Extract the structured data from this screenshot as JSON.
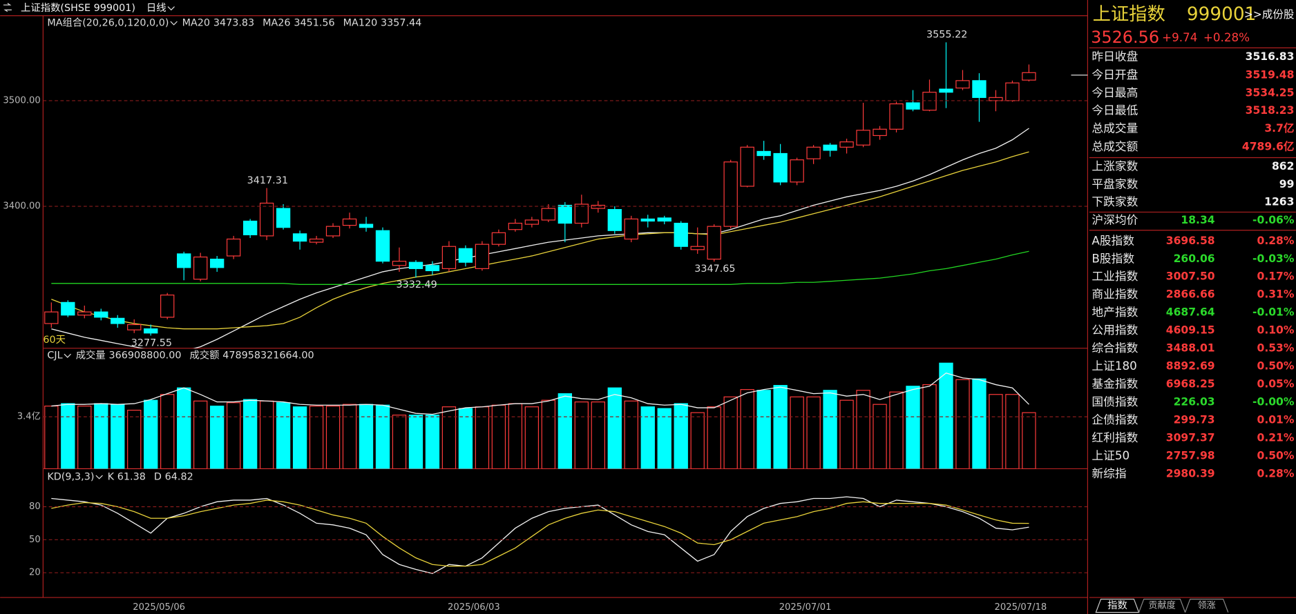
{
  "header": {
    "title": "上证指数(SHSE 999001)",
    "period": "日线"
  },
  "chart_data": [
    {
      "type": "candlestick",
      "title": "MA组合(20,26,0,120,0,0)",
      "period_label": "60天",
      "categories": [
        null,
        null,
        null,
        null,
        null,
        null,
        "2025/05/06",
        null,
        null,
        null,
        null,
        null,
        null,
        null,
        null,
        null,
        null,
        null,
        null,
        null,
        null,
        null,
        null,
        null,
        null,
        "2025/06/03",
        null,
        null,
        null,
        null,
        null,
        null,
        null,
        null,
        null,
        null,
        null,
        null,
        null,
        null,
        null,
        null,
        null,
        null,
        null,
        "2025/07/01",
        null,
        null,
        null,
        null,
        null,
        null,
        null,
        null,
        null,
        null,
        null,
        null,
        "2025/07/18",
        null
      ],
      "open": [
        3289,
        3309,
        3297,
        3300,
        3294,
        3283,
        3284,
        3295,
        3355,
        3331,
        3350,
        3353,
        3386,
        3372,
        3398,
        3374,
        3366,
        3372,
        3382,
        3383,
        3377,
        3344,
        3347,
        3344,
        3341,
        3360,
        3341,
        3364,
        3378,
        3383,
        3387,
        3401,
        3384,
        3398,
        3397,
        3369,
        3388,
        3389,
        3384,
        3359,
        3350,
        3381,
        3419,
        3452,
        3450,
        3423,
        3445,
        3458,
        3456,
        3458,
        3467,
        3473,
        3498,
        3491,
        3511,
        3512,
        3519,
        3500,
        3500,
        3519.48
      ],
      "high": [
        3309,
        3311,
        3306,
        3303,
        3297,
        3293,
        3288,
        3318,
        3357,
        3356,
        3353,
        3372,
        3388,
        3417.31,
        3402,
        3377,
        3372,
        3384,
        3394,
        3390,
        3380,
        3361,
        3349,
        3348,
        3367,
        3363,
        3367,
        3378,
        3388,
        3390,
        3402,
        3404,
        3411,
        3405,
        3400,
        3391,
        3392,
        3391,
        3386,
        3380,
        3383,
        3444,
        3458,
        3462,
        3459,
        3446,
        3458,
        3460,
        3464,
        3498,
        3476,
        3499,
        3510,
        3520,
        3555.22,
        3529,
        3526,
        3510,
        3519,
        3534.25
      ],
      "low": [
        3285,
        3295,
        3294,
        3292,
        3285,
        3280,
        3277.55,
        3293,
        3330,
        3329,
        3338,
        3350,
        3370,
        3368,
        3378,
        3359,
        3364,
        3370,
        3379,
        3376,
        3346,
        3338,
        3332.49,
        3335,
        3338,
        3343,
        3339,
        3362,
        3376,
        3380,
        3385,
        3366,
        3380,
        3394,
        3374,
        3366,
        3380,
        3383,
        3359,
        3355,
        3347.65,
        3379,
        3418,
        3444,
        3420,
        3420,
        3440,
        3447,
        3450,
        3456,
        3463,
        3470,
        3490,
        3490,
        3493,
        3510,
        3480,
        3490,
        3499,
        3518.23
      ],
      "close": [
        3300,
        3297,
        3300,
        3295,
        3289,
        3288,
        3280,
        3316,
        3342,
        3352,
        3342,
        3369,
        3373,
        3403,
        3380,
        3367,
        3369,
        3381,
        3388,
        3380,
        3348,
        3348,
        3341,
        3339,
        3362,
        3347,
        3364,
        3375,
        3384,
        3387,
        3398,
        3384,
        3402,
        3401,
        3377,
        3388,
        3386,
        3386,
        3362,
        3362,
        3381,
        3442,
        3456,
        3448,
        3423,
        3444,
        3456,
        3453,
        3461,
        3472,
        3473,
        3497,
        3492,
        3508,
        3508,
        3519,
        3503,
        3503,
        3516.83,
        3526.56
      ],
      "up_color": "#ff3b3b",
      "down_color": "#00ffff",
      "ylim": [
        3265.6,
        3579.7
      ],
      "yticks": [
        {
          "value": 3400,
          "label": "3400.00"
        },
        {
          "value": 3500,
          "label": "3500.00"
        }
      ],
      "grid": true,
      "series": [
        {
          "name": "MA20",
          "color": "#f2f2f2",
          "values": [
            3284,
            3280,
            3276,
            3273,
            3270,
            3267,
            3264,
            3262,
            3263,
            3267,
            3274,
            3282,
            3290,
            3298,
            3305,
            3312,
            3318,
            3323,
            3328,
            3333,
            3338,
            3341,
            3343,
            3345,
            3348,
            3351,
            3354,
            3357,
            3360,
            3363,
            3366,
            3368,
            3370,
            3372,
            3373,
            3374,
            3375,
            3375,
            3375,
            3374,
            3374,
            3378,
            3383,
            3388,
            3391,
            3396,
            3401,
            3405,
            3409,
            3412,
            3415,
            3419,
            3424,
            3430,
            3437,
            3444,
            3450,
            3455,
            3463,
            3473.83
          ]
        },
        {
          "name": "MA26",
          "color": "#e8d23a",
          "values": [
            3312,
            3306,
            3300,
            3296,
            3292,
            3289,
            3287,
            3285,
            3284,
            3284,
            3284,
            3285,
            3286,
            3287,
            3289,
            3295,
            3304,
            3312,
            3318,
            3323,
            3327,
            3330,
            3333,
            3335,
            3338,
            3341,
            3344,
            3347,
            3350,
            3353,
            3357,
            3361,
            3365,
            3369,
            3371,
            3373,
            3374,
            3375,
            3375,
            3374,
            3373,
            3376,
            3379,
            3382,
            3385,
            3389,
            3393,
            3397,
            3401,
            3405,
            3409,
            3414,
            3419,
            3424,
            3429,
            3434,
            3438,
            3442,
            3447,
            3451.56
          ]
        },
        {
          "name": "MA120",
          "color": "#22d622",
          "values": [
            3327,
            3327,
            3327,
            3327,
            3327,
            3327,
            3327,
            3327,
            3327,
            3327,
            3327,
            3327,
            3327,
            3327,
            3327,
            3326,
            3326,
            3326,
            3326,
            3326,
            3326,
            3326,
            3326,
            3326,
            3326,
            3326,
            3326,
            3326,
            3326,
            3326,
            3326,
            3326,
            3326,
            3326,
            3326,
            3326,
            3326,
            3326,
            3326,
            3326,
            3326,
            3326,
            3327,
            3327,
            3327,
            3328,
            3328,
            3329,
            3330,
            3331,
            3332,
            3334,
            3336,
            3339,
            3341,
            3344,
            3347,
            3350,
            3354,
            3357.44
          ]
        }
      ]
    },
    {
      "type": "bar",
      "title": "CJL",
      "stats": [
        {
          "name": "成交量",
          "value": "366908800.00"
        },
        {
          "name": "成交额",
          "value": "478958321664.00"
        }
      ],
      "values": [
        4.1,
        4.26,
        4.1,
        4.26,
        4.21,
        3.83,
        4.48,
        4.86,
        5.29,
        4.43,
        4.1,
        4.32,
        4.53,
        4.43,
        4.32,
        4.05,
        4.1,
        4.1,
        4.21,
        4.21,
        4.16,
        3.51,
        3.51,
        3.51,
        4.05,
        3.94,
        4.05,
        4.16,
        4.26,
        4.05,
        4.48,
        4.91,
        4.37,
        4.37,
        5.29,
        4.43,
        4.05,
        3.94,
        4.26,
        3.67,
        4.05,
        4.7,
        5.18,
        5.13,
        5.45,
        4.7,
        4.7,
        5.13,
        4.48,
        5.13,
        4.21,
        5.02,
        5.4,
        5.5,
        6.91,
        5.83,
        5.88,
        4.86,
        4.86,
        3.67
      ],
      "ylim": [
        0,
        7.88
      ],
      "yticks": [
        {
          "value": 3.4,
          "label": "3.4亿"
        }
      ],
      "grid": true,
      "series": [
        {
          "color": "#f2f2f2",
          "values": [
            4.1,
            4.21,
            4.21,
            4.26,
            4.21,
            4.26,
            4.53,
            4.91,
            5.29,
            4.86,
            4.37,
            4.37,
            4.48,
            4.43,
            4.37,
            4.21,
            4.16,
            4.16,
            4.16,
            4.21,
            4.16,
            3.89,
            3.62,
            3.56,
            3.78,
            3.99,
            4.05,
            4.16,
            4.26,
            4.26,
            4.43,
            4.75,
            4.59,
            4.53,
            4.86,
            4.64,
            4.26,
            4.16,
            4.21,
            3.99,
            3.99,
            4.48,
            4.96,
            5.18,
            5.34,
            5.13,
            4.91,
            4.96,
            4.75,
            4.86,
            4.53,
            4.86,
            5.18,
            5.4,
            6.26,
            5.94,
            5.83,
            5.5,
            5.29,
            4.21
          ]
        }
      ]
    },
    {
      "type": "line",
      "title": "KD(9,3,3)",
      "ylim": [
        -2.5,
        114.5
      ],
      "yticks": [
        20,
        50,
        80
      ],
      "grid": true,
      "series": [
        {
          "name": "K",
          "color": "#f2f2f2",
          "values": [
            87.5,
            86,
            84.5,
            81.5,
            74,
            65,
            56,
            69.5,
            74,
            80,
            84.5,
            86,
            86,
            87.5,
            81.5,
            74,
            65,
            63.5,
            60.5,
            54.5,
            36.5,
            27.5,
            23,
            19.3,
            27.5,
            26,
            33.5,
            47,
            60.5,
            69.5,
            75.5,
            78.5,
            80,
            81.5,
            72.5,
            63.5,
            57.5,
            54.5,
            42.5,
            30.5,
            36.5,
            57.5,
            71,
            78.5,
            83,
            84.5,
            87.5,
            87.5,
            89,
            87.5,
            80,
            86,
            84.5,
            83,
            80,
            75.5,
            69.5,
            60.5,
            59,
            61.38
          ]
        },
        {
          "name": "D",
          "color": "#e8d23a",
          "values": [
            78.5,
            81.5,
            83.75,
            83,
            80,
            75.5,
            69.5,
            69.5,
            71.75,
            75.5,
            78.5,
            81.5,
            83,
            86,
            84.5,
            81.5,
            77,
            72.5,
            69.5,
            65,
            53,
            42.5,
            33.5,
            27.5,
            26,
            26,
            27.5,
            35,
            42.5,
            53,
            63.5,
            69.5,
            74,
            77,
            75.5,
            71,
            66.5,
            62,
            56,
            47,
            45.5,
            50,
            57.5,
            65,
            68,
            71,
            75.5,
            78.5,
            83,
            84.5,
            83,
            83,
            83,
            83,
            81.5,
            77,
            72.5,
            68,
            65,
            64.82
          ]
        }
      ]
    }
  ],
  "quote": {
    "name": "上证指数",
    "code": "999001",
    "link": ">>成份股",
    "change": "+9.74",
    "change_pct": "+0.28%",
    "prev_close_label": "昨日收盘",
    "open_label": "今日开盘",
    "high_label": "今日最高",
    "low_label": "今日最低",
    "volume": {
      "label": "总成交量",
      "value": "3.7亿"
    },
    "amount": {
      "label": "总成交额",
      "value": "4789.6亿"
    },
    "breadth": [
      {
        "label": "上涨家数",
        "value": 862
      },
      {
        "label": "平盘家数",
        "value": 99
      },
      {
        "label": "下跌家数",
        "value": 1263
      }
    ],
    "avg_price": {
      "label": "沪深均价",
      "value": "18.34",
      "change": "-0.06%"
    },
    "indices": [
      {
        "name": "A股指数",
        "value": "3696.58",
        "change": "0.28%"
      },
      {
        "name": "B股指数",
        "value": "260.06",
        "change": "-0.03%"
      },
      {
        "name": "工业指数",
        "value": "3007.50",
        "change": "0.17%"
      },
      {
        "name": "商业指数",
        "value": "2866.66",
        "change": "0.31%"
      },
      {
        "name": "地产指数",
        "value": "4687.64",
        "change": "-0.01%"
      },
      {
        "name": "公用指数",
        "value": "4609.15",
        "change": "0.10%"
      },
      {
        "name": "综合指数",
        "value": "3488.01",
        "change": "0.53%"
      },
      {
        "name": "上证180",
        "value": "8892.69",
        "change": "0.50%"
      },
      {
        "name": "基金指数",
        "value": "6968.25",
        "change": "0.05%"
      },
      {
        "name": "国债指数",
        "value": "226.03",
        "change": "-0.00%"
      },
      {
        "name": "企债指数",
        "value": "299.73",
        "change": "0.01%"
      },
      {
        "name": "红利指数",
        "value": "3097.37",
        "change": "0.21%"
      },
      {
        "name": "上证50",
        "value": "2757.98",
        "change": "0.50%"
      },
      {
        "name": "新综指",
        "value": "2980.39",
        "change": "0.28%"
      }
    ],
    "tabs": [
      "指数",
      "贡献度",
      "领涨"
    ]
  }
}
